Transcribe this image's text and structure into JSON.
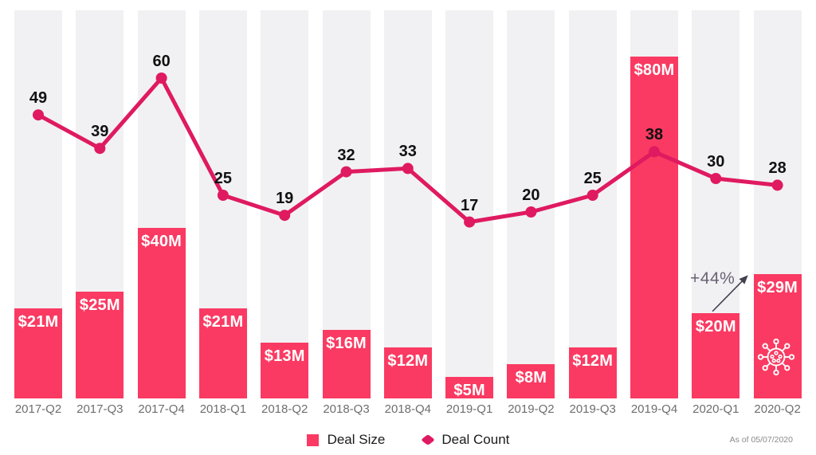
{
  "chart_data": {
    "type": "combo-bar-line",
    "categories": [
      "2017-Q2",
      "2017-Q3",
      "2017-Q4",
      "2018-Q1",
      "2018-Q2",
      "2018-Q3",
      "2018-Q4",
      "2019-Q1",
      "2019-Q2",
      "2019-Q3",
      "2019-Q4",
      "2020-Q1",
      "2020-Q2"
    ],
    "series": [
      {
        "name": "Deal Size",
        "type": "bar",
        "unit": "$M",
        "values": [
          21,
          25,
          40,
          21,
          13,
          16,
          12,
          5,
          8,
          12,
          80,
          20,
          29
        ],
        "labels": [
          "$21M",
          "$25M",
          "$40M",
          "$21M",
          "$13M",
          "$16M",
          "$12M",
          "$5M",
          "$8M",
          "$12M",
          "$80M",
          "$20M",
          "$29M"
        ],
        "color": "#FA3A62"
      },
      {
        "name": "Deal Count",
        "type": "line",
        "values": [
          49,
          39,
          60,
          25,
          19,
          32,
          33,
          17,
          20,
          25,
          38,
          30,
          28
        ],
        "color": "#DF1A60"
      }
    ],
    "ylim_bar": [
      0,
      91
    ],
    "ylim_count": [
      0,
      83
    ],
    "grid": "vertical-column-bands",
    "legend_position": "bottom-center",
    "annotation": {
      "text": "+44%",
      "from_category": "2020-Q1",
      "to_category": "2020-Q2",
      "arrow": true
    },
    "icon": {
      "name": "virus-icon",
      "location": "2020-Q2 bar"
    }
  },
  "legend": {
    "items": [
      {
        "label": "Deal Size",
        "swatch": "square",
        "color": "#FA3A62"
      },
      {
        "label": "Deal Count",
        "swatch": "diamond",
        "color": "#DF1A60"
      }
    ]
  },
  "footnote": "As of 05/07/2020",
  "colors": {
    "bar": "#FA3A62",
    "line": "#DF1A60",
    "column_band": "#F1F1F3",
    "bar_label_text": "#FFFFFF",
    "count_label_text": "#111111",
    "axis_label_text": "#6E6E6E",
    "annotation_text": "#6A6375",
    "arrow": "#45404F",
    "background": "#FFFFFF"
  }
}
